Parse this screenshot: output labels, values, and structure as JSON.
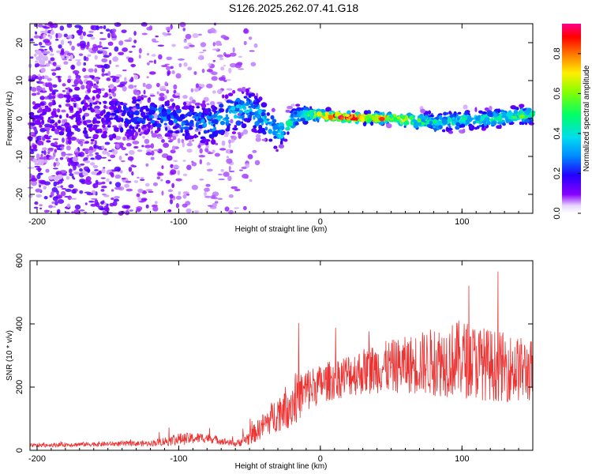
{
  "title": "S126.2025.262.07.41.G18",
  "chart_data": [
    {
      "type": "heatmap",
      "title": "S126.2025.262.07.41.G18",
      "xlabel": "Height of straight line (km)",
      "ylabel": "Frequency (Hz)",
      "xlim": [
        -205,
        150
      ],
      "ylim": [
        -25,
        25
      ],
      "xticks": [
        -200,
        -100,
        0,
        100
      ],
      "yticks": [
        -20,
        -10,
        0,
        10,
        20
      ],
      "colorbar": {
        "label": "Normalized spectral amplitude",
        "range": [
          0.0,
          0.95
        ],
        "ticks": [
          0.0,
          0.2,
          0.4,
          0.6,
          0.8
        ]
      },
      "ridge": [
        {
          "x": -200,
          "freq": 0.0,
          "spread": 20,
          "amp": 0.12
        },
        {
          "x": -150,
          "freq": 0.5,
          "spread": 14,
          "amp": 0.15
        },
        {
          "x": -120,
          "freq": 1.0,
          "spread": 6,
          "amp": 0.25
        },
        {
          "x": -80,
          "freq": -1.5,
          "spread": 7,
          "amp": 0.28
        },
        {
          "x": -50,
          "freq": 3.0,
          "spread": 6,
          "amp": 0.35
        },
        {
          "x": -30,
          "freq": -4.0,
          "spread": 5,
          "amp": 0.35
        },
        {
          "x": -15,
          "freq": 1.0,
          "spread": 2.5,
          "amp": 0.45
        },
        {
          "x": 0,
          "freq": 0.8,
          "spread": 1.5,
          "amp": 0.6
        },
        {
          "x": 20,
          "freq": 0.3,
          "spread": 1.2,
          "amp": 0.9
        },
        {
          "x": 50,
          "freq": 0.0,
          "spread": 1.5,
          "amp": 0.65
        },
        {
          "x": 80,
          "freq": -1.0,
          "spread": 3,
          "amp": 0.4
        },
        {
          "x": 120,
          "freq": 0.0,
          "spread": 2.5,
          "amp": 0.45
        },
        {
          "x": 150,
          "freq": 1.0,
          "spread": 2.5,
          "amp": 0.5
        }
      ]
    },
    {
      "type": "line",
      "xlabel": "Height of straight line (km)",
      "ylabel": "SNR (10 * v/v)",
      "xlim": [
        -205,
        150
      ],
      "ylim": [
        0,
        600
      ],
      "xticks": [
        -200,
        -100,
        0,
        100
      ],
      "yticks": [
        0,
        200,
        400,
        600
      ],
      "color": "#ee3333",
      "series": [
        {
          "name": "SNR",
          "x": [
            -205,
            -180,
            -150,
            -120,
            -100,
            -80,
            -60,
            -50,
            -40,
            -30,
            -20,
            -10,
            0,
            20,
            40,
            60,
            80,
            100,
            120,
            150
          ],
          "y": [
            15,
            18,
            20,
            22,
            35,
            40,
            20,
            40,
            80,
            120,
            150,
            190,
            210,
            240,
            260,
            270,
            280,
            290,
            270,
            250
          ],
          "spread": [
            12,
            14,
            15,
            18,
            40,
            30,
            18,
            50,
            80,
            120,
            160,
            150,
            120,
            140,
            160,
            180,
            220,
            250,
            230,
            200
          ]
        }
      ]
    }
  ]
}
